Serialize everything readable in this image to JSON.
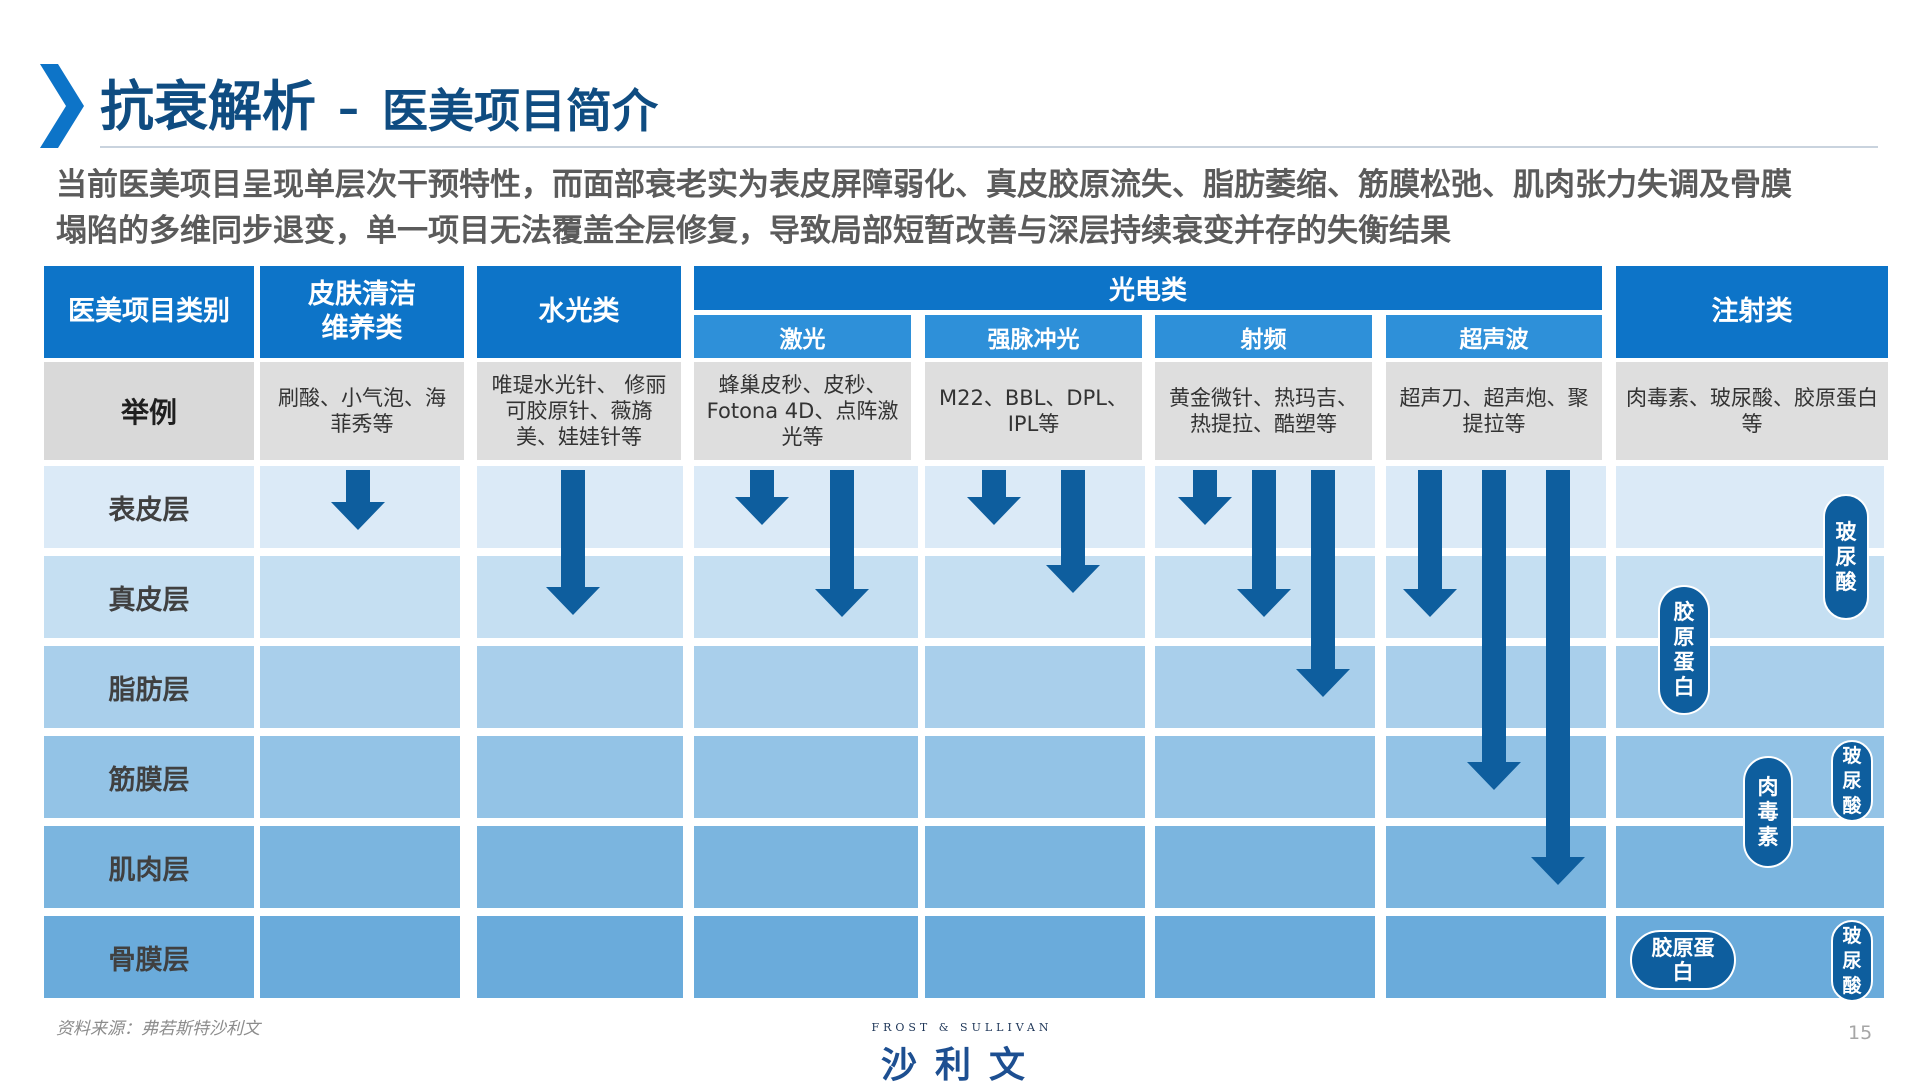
{
  "header": {
    "title_main": "抗衰解析",
    "title_dash": "–",
    "title_sub": "医美项目简介"
  },
  "intro": {
    "line1": "当前医美项目呈现单层次干预特性，而面部衰老实为表皮屏障弱化、真皮胶原流失、脂肪萎缩、筋膜松弛、肌肉张力失调及骨膜",
    "line2": "塌陷的多维同步退变，单一项目无法覆盖全层修复，导致局部短暂改善与深层持续衰变并存的失衡结果"
  },
  "table": {
    "category_label": "医美项目类别",
    "example_label": "举例",
    "groups": {
      "skin_clean": {
        "line1": "皮肤清洁",
        "line2": "维养类",
        "example": "刷酸、小气泡、海菲秀等"
      },
      "water_light": {
        "label": "水光类",
        "example": "唯瑅水光针、 修丽可胶原针、薇旖美、娃娃针等"
      },
      "photoelectric": {
        "label": "光电类"
      },
      "injection": {
        "label": "注射类",
        "example": "肉毒素、玻尿酸、胶原蛋白等"
      }
    },
    "subcategories": [
      {
        "label": "激光",
        "example": "蜂巢皮秒、皮秒、Fotona 4D、点阵激光等"
      },
      {
        "label": "强脉冲光",
        "example": "M22、BBL、DPL、IPL等"
      },
      {
        "label": "射频",
        "example": "黄金微针、热玛吉、热提拉、酷塑等"
      },
      {
        "label": "超声波",
        "example": "超声刀、超声炮、聚提拉等"
      }
    ],
    "layers": [
      "表皮层",
      "真皮层",
      "脂肪层",
      "筋膜层",
      "肌肉层",
      "骨膜层"
    ],
    "layer_colors": [
      "#dbeaf7",
      "#c5dff2",
      "#a9cfeb",
      "#93c3e6",
      "#7bb5df",
      "#6aabdb"
    ]
  },
  "injection_markers": [
    {
      "text": "玻尿酸",
      "layer": "表皮层"
    },
    {
      "text": "胶原蛋白",
      "layer": "真皮层"
    },
    {
      "text": "玻尿酸",
      "layer": "筋膜层"
    },
    {
      "text": "肉毒素",
      "layer": "筋膜层"
    },
    {
      "text": "胶原蛋白",
      "layer": "骨膜层"
    },
    {
      "text": "玻尿酸",
      "layer": "骨膜层"
    }
  ],
  "colors": {
    "brand_dark": "#0f4c81",
    "header_blue": "#0d74c8",
    "subheader_blue": "#2e90d9",
    "arrow_blue": "#0e5e9e"
  },
  "footer": {
    "source": "资料来源：弗若斯特沙利文",
    "logo_en": "FROST & SULLIVAN",
    "logo_cn": "沙利文",
    "page_number": "15"
  }
}
